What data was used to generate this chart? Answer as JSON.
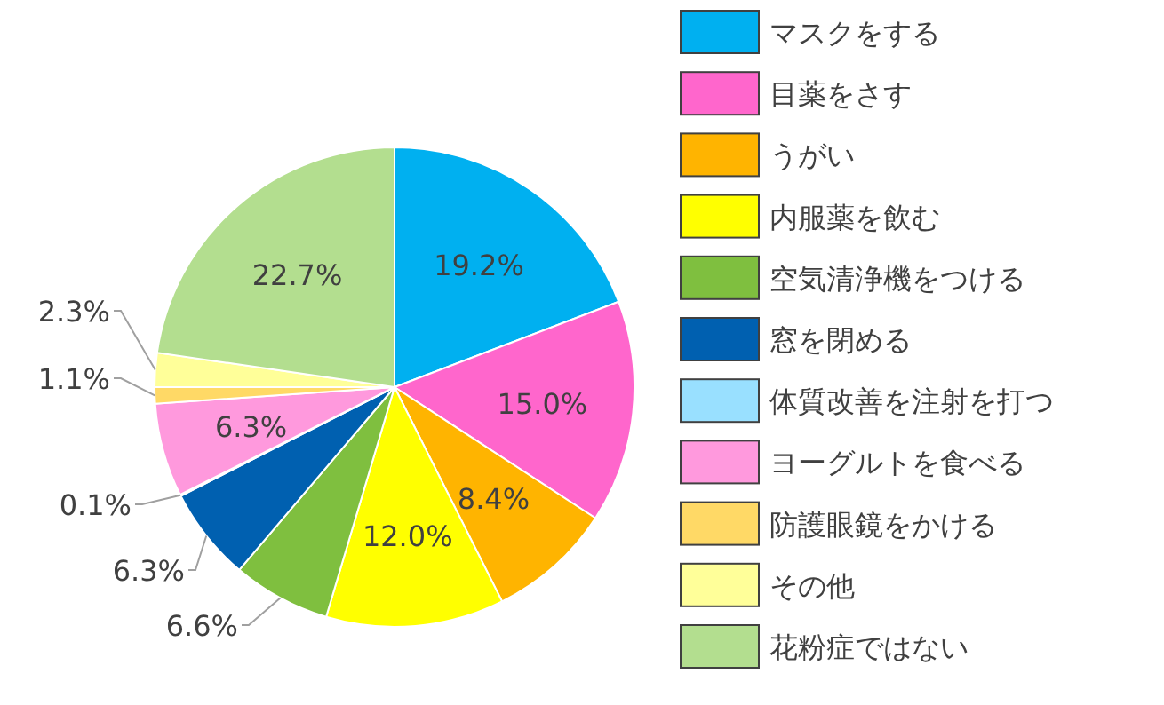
{
  "chart_data": {
    "type": "pie",
    "legend": "right",
    "categories": [
      "マスクをする",
      "目薬をさす",
      "うがい",
      "内服薬を飲む",
      "空気清浄機をつける",
      "窓を閉める",
      "体質改善を注射を打つ",
      "ヨーグルトを食べる",
      "防護眼鏡をかける",
      "その他",
      "花粉症ではない"
    ],
    "values": [
      19.2,
      15.0,
      8.4,
      12.0,
      6.6,
      6.3,
      0.1,
      6.3,
      1.1,
      2.3,
      22.7
    ],
    "value_labels": [
      "19.2%",
      "15.0%",
      "8.4%",
      "12.0%",
      "6.6%",
      "6.3%",
      "0.1%",
      "6.3%",
      "1.1%",
      "2.3%",
      "22.7%"
    ],
    "colors": [
      "#00b0f0",
      "#ff66cc",
      "#ffb400",
      "#ffff00",
      "#7fbf3f",
      "#0060b0",
      "#99e0ff",
      "#ff99dd",
      "#ffd966",
      "#ffff99",
      "#b3de8f"
    ]
  }
}
